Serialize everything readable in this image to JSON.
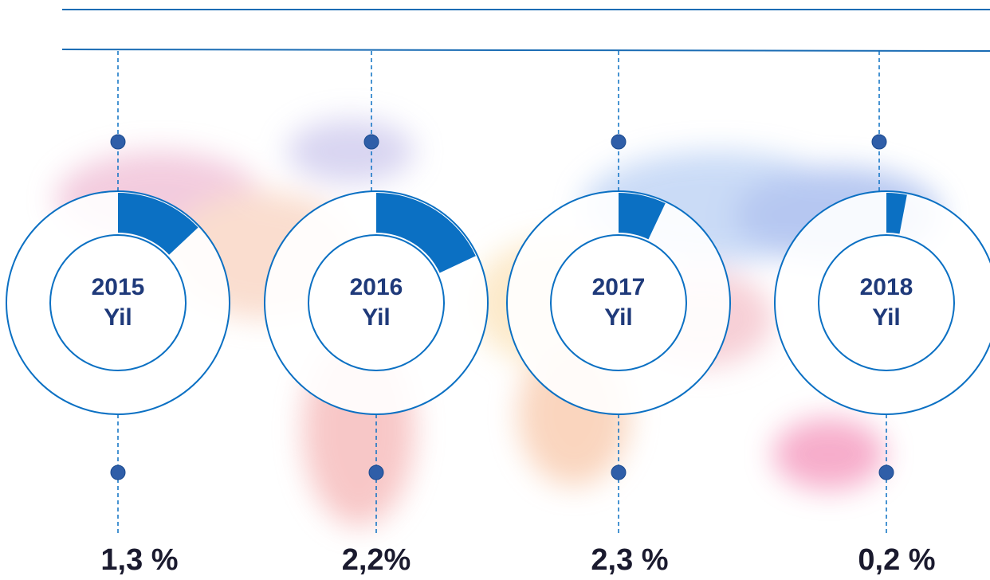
{
  "items": [
    {
      "year": "2015",
      "suffix": "Yil",
      "value_label": "1,3 %",
      "wedge_percent": 13
    },
    {
      "year": "2016",
      "suffix": "Yil",
      "value_label": "2,2%",
      "wedge_percent": 18
    },
    {
      "year": "2017",
      "suffix": "Yil",
      "value_label": "2,3 %",
      "wedge_percent": 7
    },
    {
      "year": "2018",
      "suffix": "Yil",
      "value_label": "0,2 %",
      "wedge_percent": 3
    }
  ]
}
